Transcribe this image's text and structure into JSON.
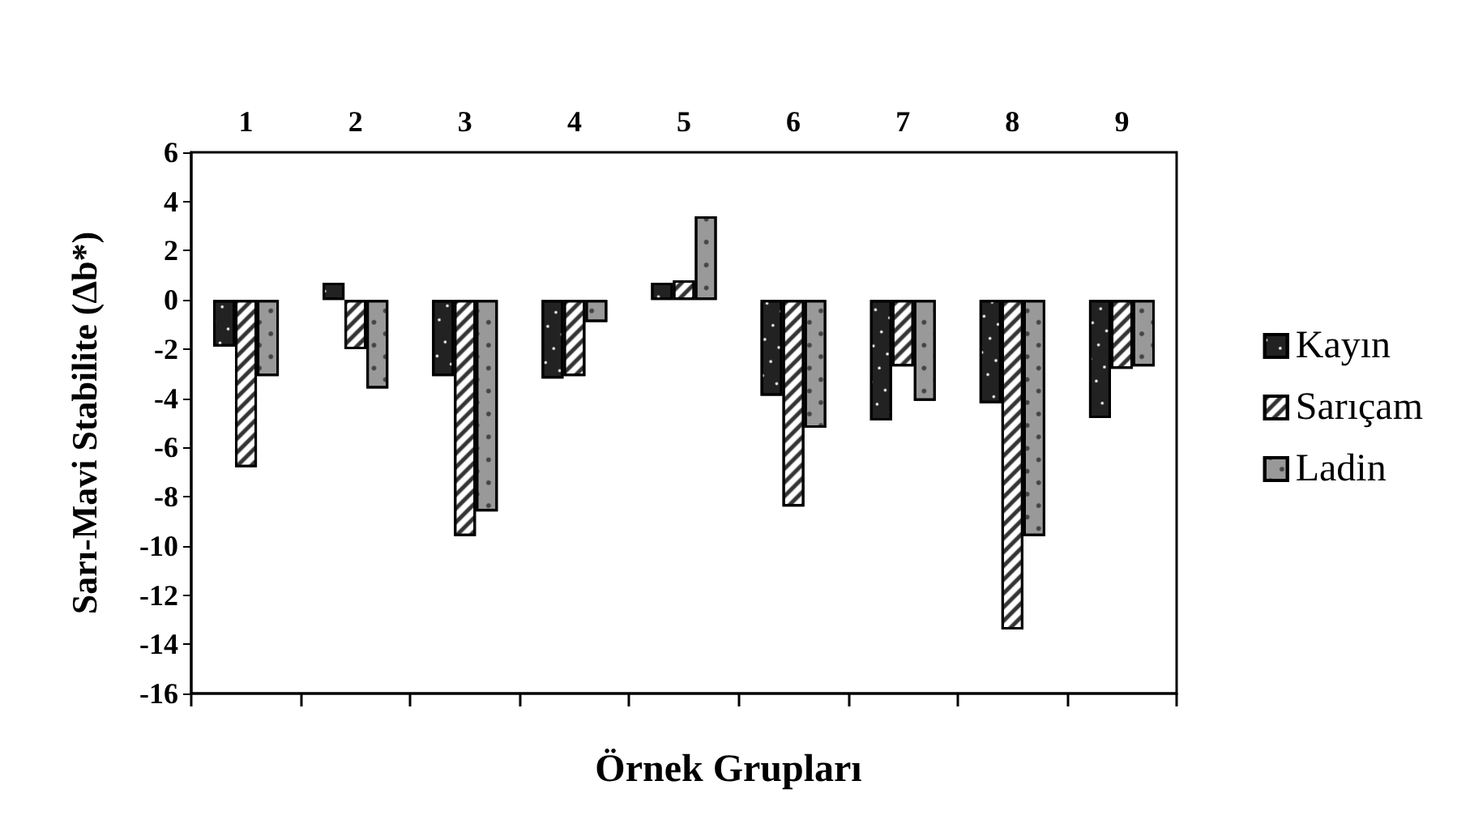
{
  "chart_data": {
    "type": "bar",
    "xlabel": "Örnek Grupları",
    "ylabel": "Sarı-Mavi Stabilite (Δb*)",
    "categories": [
      "1",
      "2",
      "3",
      "4",
      "5",
      "6",
      "7",
      "8",
      "9"
    ],
    "series": [
      {
        "name": "Kayın",
        "color": "#222222",
        "values": [
          -1.9,
          0.7,
          -3.1,
          -3.2,
          0.7,
          -3.9,
          -4.9,
          -4.2,
          -4.8
        ]
      },
      {
        "name": "Sarıçam",
        "color": "#ffffff",
        "values": [
          -6.8,
          -2.0,
          -9.6,
          -3.1,
          0.8,
          -8.4,
          -2.7,
          -13.4,
          -2.8
        ]
      },
      {
        "name": "Ladin",
        "color": "#999999",
        "values": [
          -3.1,
          -3.6,
          -8.6,
          -0.9,
          3.4,
          -5.2,
          -4.1,
          -9.6,
          -2.7
        ]
      }
    ],
    "ylim": [
      -16,
      6
    ],
    "yticks": [
      -16,
      -14,
      -12,
      -10,
      -8,
      -6,
      -4,
      -2,
      0,
      2,
      4,
      6
    ],
    "grid": false,
    "legend": "right"
  }
}
